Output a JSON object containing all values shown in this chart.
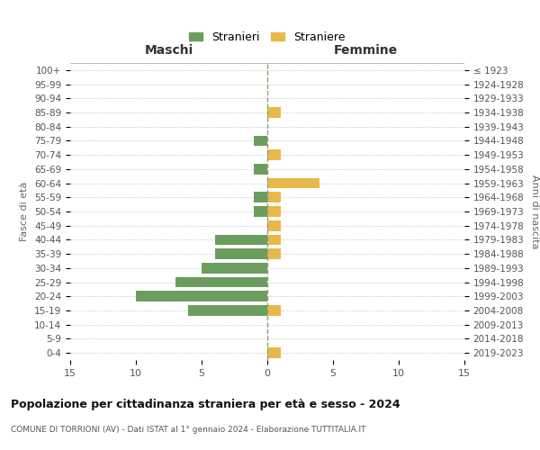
{
  "age_groups": [
    "0-4",
    "5-9",
    "10-14",
    "15-19",
    "20-24",
    "25-29",
    "30-34",
    "35-39",
    "40-44",
    "45-49",
    "50-54",
    "55-59",
    "60-64",
    "65-69",
    "70-74",
    "75-79",
    "80-84",
    "85-89",
    "90-94",
    "95-99",
    "100+"
  ],
  "birth_years": [
    "2019-2023",
    "2014-2018",
    "2009-2013",
    "2004-2008",
    "1999-2003",
    "1994-1998",
    "1989-1993",
    "1984-1988",
    "1979-1983",
    "1974-1978",
    "1969-1973",
    "1964-1968",
    "1959-1963",
    "1954-1958",
    "1949-1953",
    "1944-1948",
    "1939-1943",
    "1934-1938",
    "1929-1933",
    "1924-1928",
    "≤ 1923"
  ],
  "maschi_stranieri": [
    0,
    0,
    0,
    6,
    10,
    7,
    5,
    4,
    4,
    0,
    1,
    1,
    0,
    1,
    0,
    1,
    0,
    0,
    0,
    0,
    0
  ],
  "femmine_straniere": [
    1,
    0,
    0,
    1,
    0,
    0,
    0,
    1,
    1,
    1,
    1,
    1,
    4,
    0,
    1,
    0,
    0,
    1,
    0,
    0,
    0
  ],
  "maschi_color": "#6b9e5e",
  "femmine_color": "#e8b84b",
  "title": "Popolazione per cittadinanza straniera per età e sesso - 2024",
  "subtitle": "COMUNE DI TORRIONI (AV) - Dati ISTAT al 1° gennaio 2024 - Elaborazione TUTTITALIA.IT",
  "xlabel_maschi": "Maschi",
  "xlabel_femmine": "Femmine",
  "ylabel_left": "Fasce di età",
  "ylabel_right": "Anni di nascita",
  "legend_maschi": "Stranieri",
  "legend_femmine": "Straniere",
  "xlim": 15,
  "bg_color": "#ffffff",
  "grid_color": "#d0d0d0",
  "bar_height": 0.75
}
